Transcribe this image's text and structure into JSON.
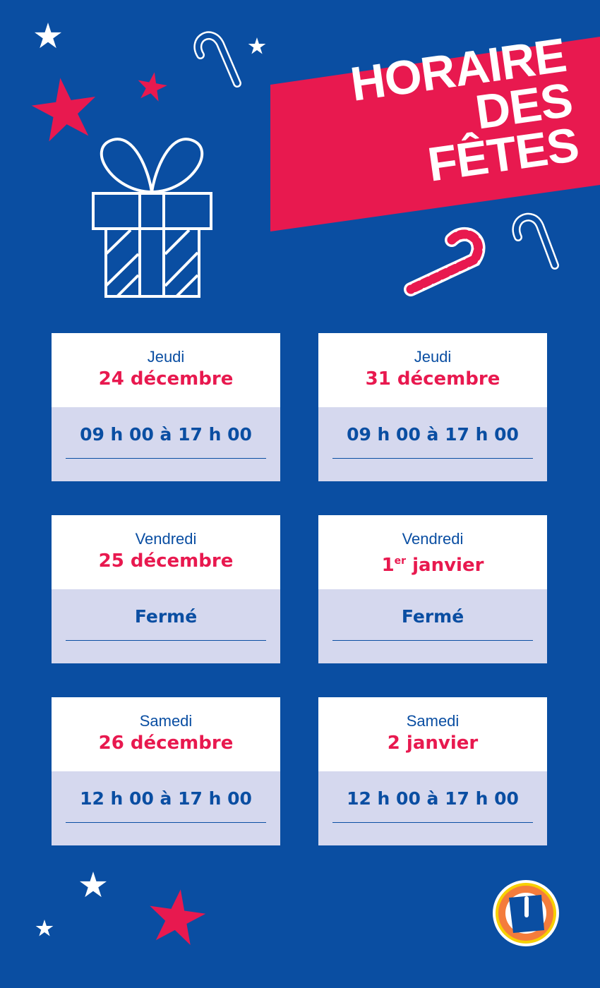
{
  "colors": {
    "background": "#0a4ea2",
    "accent": "#e8194f",
    "card_bottom": "#d5d8ee"
  },
  "banner": {
    "line1": "HORAIRE",
    "line2": "DES FÊTES"
  },
  "cards": [
    {
      "day": "Jeudi",
      "date": "24 décembre",
      "hours": "09 h 00 à 17 h 00"
    },
    {
      "day": "Jeudi",
      "date": "31 décembre",
      "hours": "09 h 00 à 17 h 00"
    },
    {
      "day": "Vendredi",
      "date": "25 décembre",
      "hours": "Fermé"
    },
    {
      "day": "Vendredi",
      "date_num": "1",
      "date_sup": "er",
      "date_rest": " janvier",
      "hours": "Fermé"
    },
    {
      "day": "Samedi",
      "date": "26 décembre",
      "hours": "12 h 00 à 17 h 00"
    },
    {
      "day": "Samedi",
      "date": "2 janvier",
      "hours": "12 h 00 à 17 h 00"
    }
  ],
  "logo": {
    "letter": "U"
  }
}
